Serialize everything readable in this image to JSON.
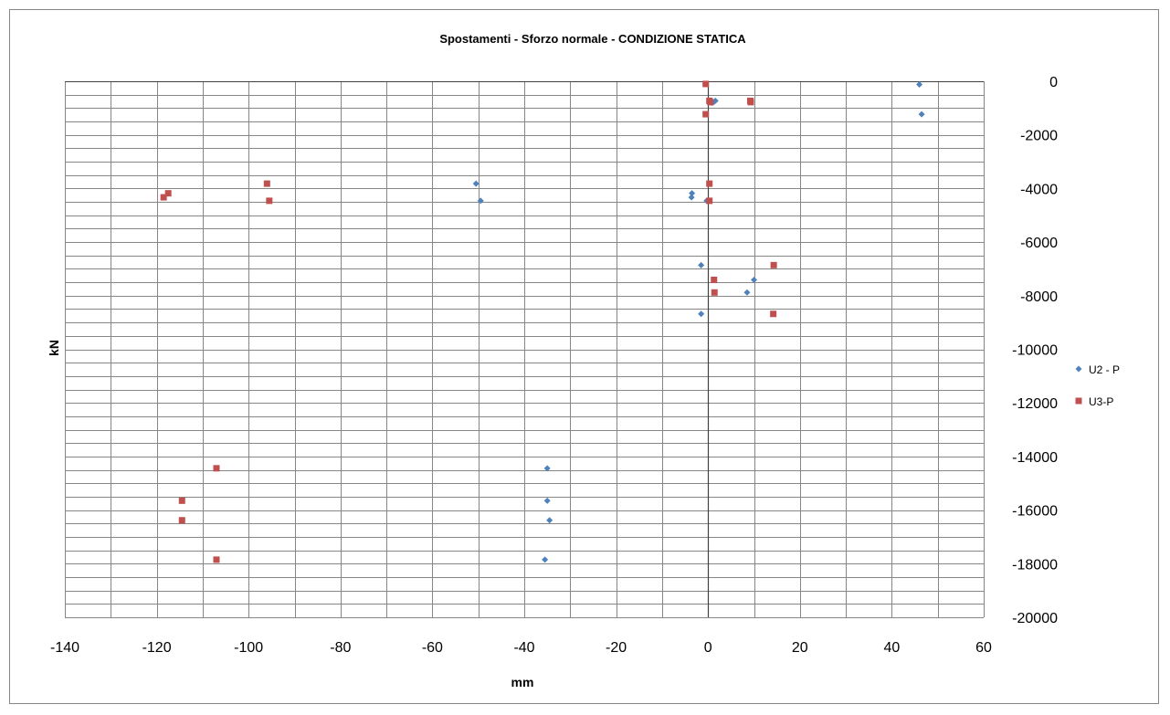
{
  "chart_data": {
    "type": "scatter",
    "title": "Spostamenti - Sforzo normale - CONDIZIONE STATICA",
    "xlabel": "mm",
    "ylabel": "kN",
    "xlim": [
      -140,
      60
    ],
    "ylim": [
      -20000,
      0
    ],
    "x_ticks": [
      "-140",
      "-120",
      "-100",
      "-80",
      "-60",
      "-40",
      "-20",
      "0",
      "20",
      "40",
      "60"
    ],
    "y_ticks": [
      "0",
      "-2000",
      "-4000",
      "-6000",
      "-8000",
      "-10000",
      "-12000",
      "-14000",
      "-16000",
      "-18000",
      "-20000"
    ],
    "grid": true,
    "legend_position": "right",
    "series": [
      {
        "name": "U2 - P",
        "color": "#4F81BD",
        "marker": "diamond",
        "points": [
          [
            46,
            -120
          ],
          [
            46.5,
            -1230
          ],
          [
            0.5,
            -720
          ],
          [
            1.2,
            -780
          ],
          [
            1.6,
            -730
          ],
          [
            0.8,
            -800
          ],
          [
            -50.5,
            -3820
          ],
          [
            -49.5,
            -4460
          ],
          [
            -3.5,
            -4180
          ],
          [
            -3.6,
            -4330
          ],
          [
            -0.3,
            -4460
          ],
          [
            -1.5,
            -6860
          ],
          [
            10,
            -7410
          ],
          [
            8.5,
            -7880
          ],
          [
            -1.5,
            -8680
          ],
          [
            -35,
            -14440
          ],
          [
            -35,
            -15650
          ],
          [
            -34.5,
            -16380
          ],
          [
            -35.5,
            -17850
          ]
        ]
      },
      {
        "name": "U3-P",
        "color": "#C0504D",
        "marker": "square",
        "points": [
          [
            -0.5,
            -100
          ],
          [
            0.3,
            -730
          ],
          [
            0.5,
            -780
          ],
          [
            9.2,
            -730
          ],
          [
            9.3,
            -780
          ],
          [
            -0.5,
            -1230
          ],
          [
            -96,
            -3820
          ],
          [
            -95.5,
            -4460
          ],
          [
            -117.5,
            -4180
          ],
          [
            -118.5,
            -4330
          ],
          [
            0.3,
            -3820
          ],
          [
            0.3,
            -4460
          ],
          [
            14.3,
            -6860
          ],
          [
            1.3,
            -7410
          ],
          [
            1.4,
            -7880
          ],
          [
            14.2,
            -8680
          ],
          [
            -107,
            -14440
          ],
          [
            -114.5,
            -15650
          ],
          [
            -114.5,
            -16380
          ],
          [
            -107,
            -17850
          ]
        ]
      }
    ]
  }
}
